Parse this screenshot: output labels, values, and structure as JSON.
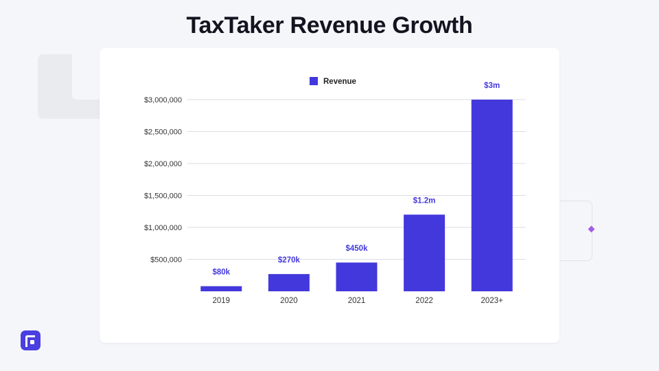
{
  "page": {
    "title": "TaxTaker Revenue Growth"
  },
  "icons": {
    "logo": "brand-logo-icon"
  },
  "colors": {
    "bar": "#4338dc",
    "label": "#4338dc",
    "grid": "#dcdde3",
    "tick": "#333333",
    "accent": "#a55be6",
    "background": "#f5f6fa"
  },
  "chart_data": {
    "type": "bar",
    "categories": [
      "2019",
      "2020",
      "2021",
      "2022",
      "2023+"
    ],
    "series": [
      {
        "name": "Revenue",
        "values": [
          80000,
          270000,
          450000,
          1200000,
          3000000
        ],
        "data_labels": [
          "$80k",
          "$270k",
          "$450k",
          "$1.2m",
          "$3m"
        ]
      }
    ],
    "yticks": [
      "$500,000",
      "$1,000,000",
      "$1,500,000",
      "$2,000,000",
      "$2,500,000",
      "$3,000,000"
    ],
    "ylim": [
      0,
      3000000
    ],
    "grid": true,
    "legend": "top-center"
  }
}
